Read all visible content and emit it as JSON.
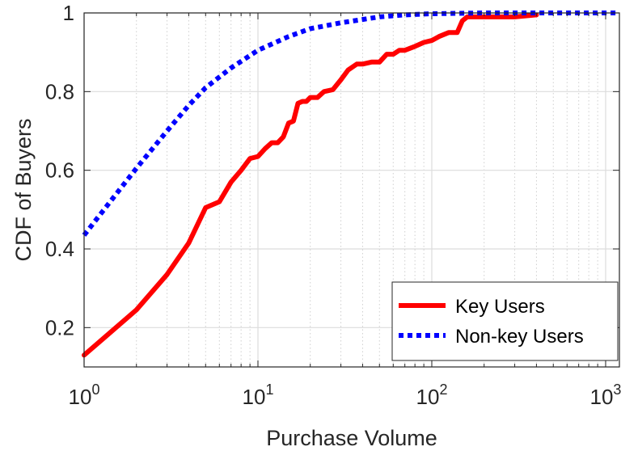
{
  "chart_data": {
    "type": "line",
    "xscale": "log",
    "xlim": [
      1,
      1200
    ],
    "ylim": [
      0.1,
      1
    ],
    "xlabel": "Purchase Volume",
    "ylabel": "CDF of Buyers",
    "grid": true,
    "legend_position": "bottom-right",
    "x_ticks": [
      {
        "value": 1,
        "base": "10",
        "exp": "0"
      },
      {
        "value": 10,
        "base": "10",
        "exp": "1"
      },
      {
        "value": 100,
        "base": "10",
        "exp": "2"
      },
      {
        "value": 1000,
        "base": "10",
        "exp": "3"
      }
    ],
    "y_ticks": [
      {
        "value": 0.2,
        "label": "0.2"
      },
      {
        "value": 0.4,
        "label": "0.4"
      },
      {
        "value": 0.6,
        "label": "0.6"
      },
      {
        "value": 0.8,
        "label": "0.8"
      },
      {
        "value": 1,
        "label": "1"
      }
    ],
    "series": [
      {
        "name": "Key Users",
        "color": "#ff0000",
        "style": "solid",
        "x": [
          1,
          2,
          3,
          4,
          5,
          6,
          7,
          8,
          9,
          10,
          11,
          12,
          13,
          14,
          15,
          16,
          17,
          18,
          19,
          20,
          22,
          24,
          27,
          30,
          33,
          37,
          40,
          45,
          50,
          55,
          60,
          65,
          70,
          80,
          90,
          100,
          110,
          125,
          140,
          150,
          160,
          200,
          300,
          400
        ],
        "y": [
          0.13,
          0.245,
          0.335,
          0.415,
          0.505,
          0.52,
          0.57,
          0.6,
          0.63,
          0.635,
          0.655,
          0.67,
          0.67,
          0.685,
          0.72,
          0.725,
          0.77,
          0.775,
          0.775,
          0.785,
          0.785,
          0.8,
          0.805,
          0.83,
          0.855,
          0.87,
          0.87,
          0.875,
          0.875,
          0.895,
          0.895,
          0.905,
          0.905,
          0.915,
          0.925,
          0.93,
          0.94,
          0.95,
          0.95,
          0.98,
          0.99,
          0.99,
          0.99,
          0.995
        ]
      },
      {
        "name": "Non-key Users",
        "color": "#0000ff",
        "style": "dotted",
        "x": [
          1,
          1.5,
          2,
          3,
          4,
          5,
          7,
          10,
          15,
          20,
          30,
          50,
          70,
          100,
          200,
          500,
          1000,
          1200
        ],
        "y": [
          0.435,
          0.535,
          0.605,
          0.7,
          0.765,
          0.81,
          0.86,
          0.905,
          0.94,
          0.96,
          0.975,
          0.99,
          0.995,
          0.998,
          1,
          1,
          1,
          1
        ]
      }
    ]
  }
}
